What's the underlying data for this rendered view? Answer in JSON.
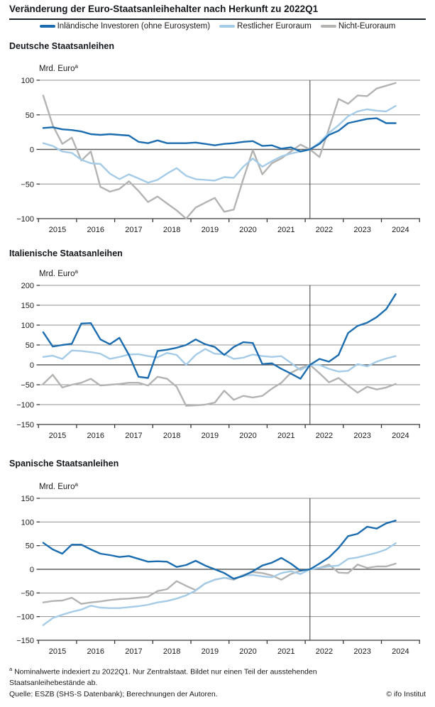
{
  "header": {
    "title": "Veränderung der Euro-Staatsanleihehalter nach Herkunft zu 2022Q1"
  },
  "legend": {
    "items": [
      {
        "label": "Inländische Investoren (ohne Eurosystem)",
        "color": "#1b6db0"
      },
      {
        "label": "Restlicher Euroraum",
        "color": "#a5cbe7"
      },
      {
        "label": "Nicht-Euroraum",
        "color": "#b3b3b1"
      }
    ]
  },
  "chart_data": [
    {
      "type": "line",
      "title": "Deutsche Staatsanleihen",
      "unit_label": "Mrd. Euro",
      "unit_superscript": "a",
      "ylim": [
        -100,
        100
      ],
      "y_ticks": [
        100,
        50,
        0,
        -50,
        -100
      ],
      "grid": true,
      "reference_line_x": "2022Q1",
      "x_tick_labels": [
        "2015",
        "2016",
        "2017",
        "2018",
        "2019",
        "2020",
        "2021",
        "2022",
        "2023",
        "2024"
      ],
      "x_quarters": [
        "2015Q1",
        "2015Q2",
        "2015Q3",
        "2015Q4",
        "2016Q1",
        "2016Q2",
        "2016Q3",
        "2016Q4",
        "2017Q1",
        "2017Q2",
        "2017Q3",
        "2017Q4",
        "2018Q1",
        "2018Q2",
        "2018Q3",
        "2018Q4",
        "2019Q1",
        "2019Q2",
        "2019Q3",
        "2019Q4",
        "2020Q1",
        "2020Q2",
        "2020Q3",
        "2020Q4",
        "2021Q1",
        "2021Q2",
        "2021Q3",
        "2021Q4",
        "2022Q1",
        "2022Q2",
        "2022Q3",
        "2022Q4",
        "2023Q1",
        "2023Q2",
        "2023Q3",
        "2023Q4",
        "2024Q1",
        "2024Q2"
      ],
      "series": [
        {
          "name": "Inländische Investoren (ohne Eurosystem)",
          "color": "#1b6db0",
          "values": [
            31,
            32,
            29,
            28,
            26,
            22,
            21,
            22,
            21,
            20,
            11,
            9,
            13,
            9,
            9,
            9,
            10,
            8,
            6,
            8,
            9,
            11,
            12,
            5,
            6,
            1,
            3,
            -3,
            0,
            8,
            21,
            27,
            38,
            41,
            44,
            45,
            38,
            38
          ]
        },
        {
          "name": "Restlicher Euroraum",
          "color": "#a5cbe7",
          "values": [
            9,
            5,
            -3,
            -5,
            -15,
            -20,
            -21,
            -35,
            -43,
            -36,
            -42,
            -48,
            -44,
            -35,
            -27,
            -38,
            -43,
            -44,
            -45,
            -40,
            -41,
            -25,
            -13,
            -25,
            -17,
            -10,
            -6,
            -3,
            0,
            10,
            24,
            35,
            48,
            55,
            58,
            56,
            55,
            63
          ]
        },
        {
          "name": "Nicht-Euroraum",
          "color": "#b3b3b1",
          "values": [
            78,
            35,
            8,
            17,
            -16,
            -3,
            -54,
            -61,
            -57,
            -46,
            -60,
            -76,
            -68,
            -78,
            -88,
            -100,
            -84,
            -77,
            -70,
            -90,
            -87,
            -43,
            -1,
            -36,
            -20,
            -13,
            -3,
            7,
            0,
            -11,
            30,
            73,
            66,
            78,
            77,
            88,
            92,
            96
          ]
        }
      ]
    },
    {
      "type": "line",
      "title": "Italienische Staatsanleihen",
      "unit_label": "Mrd. Euro",
      "unit_superscript": "a",
      "ylim": [
        -150,
        200
      ],
      "y_ticks": [
        200,
        150,
        100,
        50,
        0,
        -50,
        -100,
        -150
      ],
      "grid": true,
      "reference_line_x": "2022Q1",
      "x_tick_labels": [
        "2015",
        "2016",
        "2017",
        "2018",
        "2019",
        "2020",
        "2021",
        "2022",
        "2023",
        "2024"
      ],
      "x_quarters": [
        "2015Q1",
        "2015Q2",
        "2015Q3",
        "2015Q4",
        "2016Q1",
        "2016Q2",
        "2016Q3",
        "2016Q4",
        "2017Q1",
        "2017Q2",
        "2017Q3",
        "2017Q4",
        "2018Q1",
        "2018Q2",
        "2018Q3",
        "2018Q4",
        "2019Q1",
        "2019Q2",
        "2019Q3",
        "2019Q4",
        "2020Q1",
        "2020Q2",
        "2020Q3",
        "2020Q4",
        "2021Q1",
        "2021Q2",
        "2021Q3",
        "2021Q4",
        "2022Q1",
        "2022Q2",
        "2022Q3",
        "2022Q4",
        "2023Q1",
        "2023Q2",
        "2023Q3",
        "2023Q4",
        "2024Q1",
        "2024Q2"
      ],
      "series": [
        {
          "name": "Inländische Investoren (ohne Eurosystem)",
          "color": "#1b6db0",
          "values": [
            82,
            46,
            50,
            53,
            104,
            105,
            64,
            52,
            68,
            25,
            -30,
            -33,
            35,
            38,
            43,
            50,
            64,
            52,
            45,
            25,
            45,
            57,
            55,
            2,
            4,
            -10,
            -22,
            -35,
            0,
            15,
            8,
            25,
            80,
            98,
            106,
            120,
            140,
            178
          ]
        },
        {
          "name": "Restlicher Euroraum",
          "color": "#a5cbe7",
          "values": [
            20,
            23,
            15,
            36,
            35,
            32,
            28,
            15,
            20,
            26,
            27,
            22,
            19,
            30,
            25,
            0,
            25,
            40,
            28,
            27,
            15,
            18,
            26,
            22,
            20,
            22,
            5,
            -13,
            0,
            0,
            -10,
            -17,
            -15,
            2,
            -4,
            8,
            16,
            22
          ]
        },
        {
          "name": "Nicht-Euroraum",
          "color": "#b3b3b1",
          "values": [
            -48,
            -25,
            -57,
            -50,
            -45,
            -35,
            -52,
            -50,
            -48,
            -45,
            -45,
            -52,
            -30,
            -35,
            -55,
            -103,
            -102,
            -100,
            -95,
            -65,
            -88,
            -78,
            -82,
            -78,
            -60,
            -45,
            -20,
            -8,
            0,
            -21,
            -44,
            -33,
            -52,
            -70,
            -55,
            -62,
            -57,
            -48
          ]
        }
      ]
    },
    {
      "type": "line",
      "title": "Spanische Staatsanleihen",
      "unit_label": "Mrd. Euro",
      "unit_superscript": "a",
      "ylim": [
        -150,
        150
      ],
      "y_ticks": [
        150,
        100,
        50,
        0,
        -50,
        -100,
        -150
      ],
      "grid": true,
      "reference_line_x": "2022Q1",
      "x_tick_labels": [
        "2015",
        "2016",
        "2017",
        "2018",
        "2019",
        "2020",
        "2021",
        "2022",
        "2023",
        "2024"
      ],
      "x_quarters": [
        "2015Q1",
        "2015Q2",
        "2015Q3",
        "2015Q4",
        "2016Q1",
        "2016Q2",
        "2016Q3",
        "2016Q4",
        "2017Q1",
        "2017Q2",
        "2017Q3",
        "2017Q4",
        "2018Q1",
        "2018Q2",
        "2018Q3",
        "2018Q4",
        "2019Q1",
        "2019Q2",
        "2019Q3",
        "2019Q4",
        "2020Q1",
        "2020Q2",
        "2020Q3",
        "2020Q4",
        "2021Q1",
        "2021Q2",
        "2021Q3",
        "2021Q4",
        "2022Q1",
        "2022Q2",
        "2022Q3",
        "2022Q4",
        "2023Q1",
        "2023Q2",
        "2023Q3",
        "2023Q4",
        "2024Q1",
        "2024Q2"
      ],
      "series": [
        {
          "name": "Inländische Investoren (ohne Eurosystem)",
          "color": "#1b6db0",
          "values": [
            56,
            42,
            33,
            52,
            52,
            42,
            33,
            30,
            26,
            28,
            22,
            16,
            17,
            16,
            5,
            9,
            18,
            8,
            0,
            -8,
            -20,
            -14,
            -4,
            8,
            14,
            24,
            12,
            -3,
            0,
            12,
            25,
            45,
            70,
            75,
            90,
            86,
            97,
            103
          ]
        },
        {
          "name": "Restlicher Euroraum",
          "color": "#a5cbe7",
          "values": [
            -118,
            -103,
            -96,
            -90,
            -85,
            -77,
            -81,
            -82,
            -82,
            -80,
            -78,
            -75,
            -70,
            -67,
            -62,
            -55,
            -45,
            -30,
            -22,
            -18,
            -20,
            -13,
            -12,
            -15,
            -17,
            -8,
            -4,
            -10,
            0,
            3,
            6,
            8,
            22,
            25,
            30,
            35,
            42,
            55
          ]
        },
        {
          "name": "Nicht-Euroraum",
          "color": "#b3b3b1",
          "values": [
            -70,
            -67,
            -66,
            -60,
            -73,
            -70,
            -68,
            -65,
            -63,
            -62,
            -60,
            -58,
            -46,
            -42,
            -25,
            -35,
            -44,
            -30,
            -22,
            -18,
            -22,
            -12,
            -6,
            -8,
            -13,
            -22,
            -10,
            -3,
            0,
            3,
            10,
            -7,
            -8,
            10,
            3,
            6,
            6,
            12
          ]
        }
      ]
    }
  ],
  "footer": {
    "footnote_marker": "a",
    "footnote": "Nominalwerte indexiert zu 2022Q1. Nur Zentralstaat. Bildet nur einen Teil der ausstehenden Staatsanleihebestände ab.",
    "source": "Quelle: ESZB (SHS-S Datenbank); Berechnungen der Autoren.",
    "copyright": "© ifo Institut"
  }
}
